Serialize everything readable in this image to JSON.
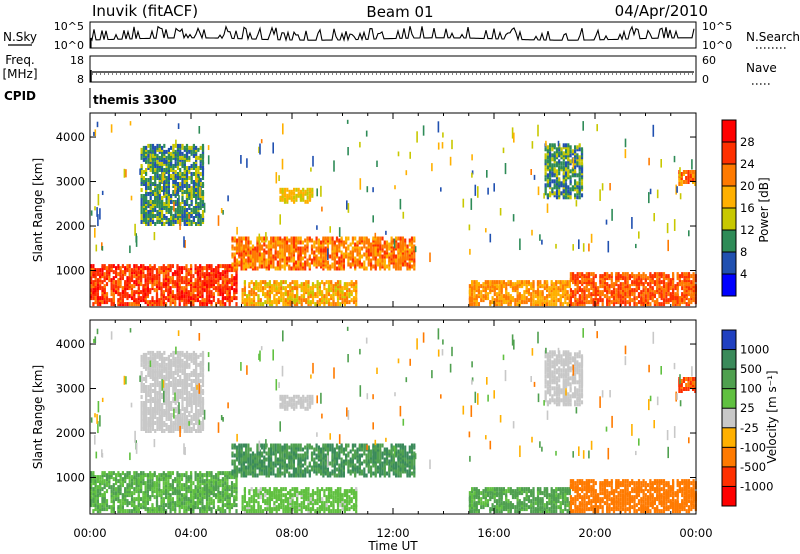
{
  "header": {
    "station": "Inuvik (fitACF)",
    "beam": "Beam 01",
    "date": "04/Apr/2010"
  },
  "noise_panel": {
    "left_label": "N.Sky",
    "left_ticks": [
      "10^5",
      "10^0"
    ],
    "right_label": "N.Search",
    "right_ticks": [
      "10^5",
      "10^0"
    ]
  },
  "freq_panel": {
    "left_label_line1": "Freq.",
    "left_label_line2": "[MHz]",
    "left_ticks": [
      "18",
      "8"
    ],
    "right_label": "Nave",
    "right_ticks": [
      "60",
      "0"
    ]
  },
  "cpid_panel": {
    "label": "CPID",
    "program": "themis 3300"
  },
  "power_panel": {
    "ylabel": "Slant Range [km]",
    "colorbar_label": "Power [dB]",
    "colorbar_ticks": [
      "28",
      "24",
      "20",
      "16",
      "12",
      "8",
      "4"
    ],
    "colors": [
      "#ff0000",
      "#ff3000",
      "#ff7a00",
      "#ffb000",
      "#c8c800",
      "#2e8b57",
      "#2050b0",
      "#0000ff"
    ]
  },
  "velocity_panel": {
    "ylabel": "Slant Range [km]",
    "colorbar_label": "Velocity [m s⁻¹]",
    "colorbar_ticks": [
      "1000",
      "500",
      "100",
      "25",
      "-25",
      "-100",
      "-500",
      "-1000"
    ],
    "colors": [
      "#2040c0",
      "#3a8a5a",
      "#4fa04f",
      "#60c040",
      "#c8c8c8",
      "#ffb000",
      "#ff7a00",
      "#ff3000",
      "#ff0000"
    ]
  },
  "chart_data": {
    "type": "heatmap",
    "x_label": "Time UT",
    "x_ticks": [
      "00:00",
      "04:00",
      "08:00",
      "12:00",
      "16:00",
      "20:00",
      "00:00"
    ],
    "y_ticks": [
      "1000",
      "2000",
      "3000",
      "4000"
    ],
    "x_range_hours": [
      0,
      24
    ],
    "y_range_km": [
      180,
      4540
    ],
    "echo_regions": [
      {
        "start_h": 0.0,
        "end_h": 5.8,
        "min_km": 200,
        "max_km": 1100,
        "power_db": 26,
        "velocity": 60
      },
      {
        "start_h": 5.6,
        "end_h": 12.8,
        "min_km": 1000,
        "max_km": 1700,
        "power_db": 22,
        "velocity": 300
      },
      {
        "start_h": 6.0,
        "end_h": 10.5,
        "min_km": 200,
        "max_km": 700,
        "power_db": 18,
        "velocity": 40
      },
      {
        "start_h": 15.0,
        "end_h": 19.0,
        "min_km": 200,
        "max_km": 700,
        "power_db": 20,
        "velocity": 80
      },
      {
        "start_h": 19.0,
        "end_h": 24.0,
        "min_km": 200,
        "max_km": 900,
        "power_db": 24,
        "velocity": -150
      },
      {
        "start_h": 2.0,
        "end_h": 4.5,
        "min_km": 2000,
        "max_km": 3800,
        "power_db": 10,
        "velocity": 0
      },
      {
        "start_h": 7.5,
        "end_h": 8.8,
        "min_km": 2500,
        "max_km": 2800,
        "power_db": 16,
        "velocity": 0
      },
      {
        "start_h": 18.0,
        "end_h": 19.5,
        "min_km": 2600,
        "max_km": 3800,
        "power_db": 10,
        "velocity": 10
      },
      {
        "start_h": 23.3,
        "end_h": 24.0,
        "min_km": 2900,
        "max_km": 3200,
        "power_db": 22,
        "velocity": -400
      }
    ]
  }
}
